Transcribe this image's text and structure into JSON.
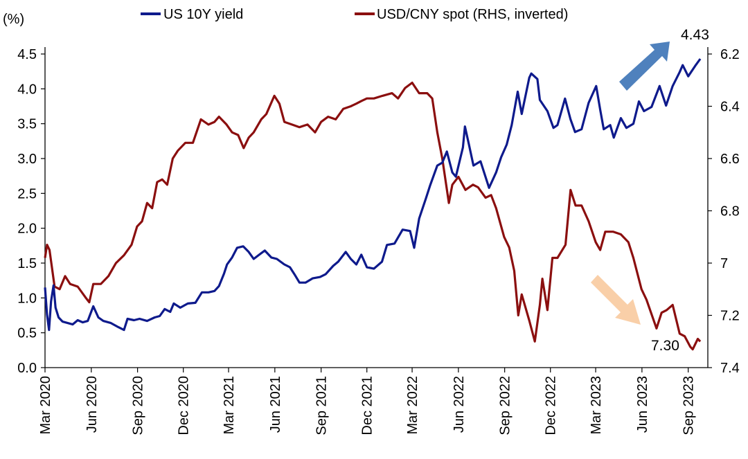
{
  "chart_data": {
    "type": "line",
    "y_unit_label": "(%)",
    "x_tick_labels": [
      "Mar 2020",
      "Jun 2020",
      "Sep 2020",
      "Dec 2020",
      "Mar 2021",
      "Jun 2021",
      "Sep 2021",
      "Dec 2021",
      "Mar 2022",
      "Jun 2022",
      "Sep 2022",
      "Dec 2022",
      "Mar 2023",
      "Jun 2023",
      "Sep 2023"
    ],
    "x_range": [
      "2020-03-01",
      "2023-10-10"
    ],
    "y_left": {
      "ylim": [
        0,
        4.5
      ],
      "ticks": [
        "0.0",
        "0.5",
        "1.0",
        "1.5",
        "2.0",
        "2.5",
        "3.0",
        "3.5",
        "4.0",
        "4.5"
      ]
    },
    "y_right": {
      "ylim": [
        6.2,
        7.4
      ],
      "inverted": true,
      "ticks": [
        "6.2",
        "6.4",
        "6.6",
        "6.8",
        "7",
        "7.2",
        "7.4"
      ]
    },
    "legend_position": "top",
    "series": [
      {
        "name": "US 10Y yield",
        "axis": "left",
        "color": "#0e1a8c",
        "points": [
          [
            "2020-03-01",
            1.15
          ],
          [
            "2020-03-05",
            0.76
          ],
          [
            "2020-03-09",
            0.54
          ],
          [
            "2020-03-13",
            0.95
          ],
          [
            "2020-03-18",
            1.18
          ],
          [
            "2020-03-22",
            0.86
          ],
          [
            "2020-03-28",
            0.72
          ],
          [
            "2020-04-05",
            0.66
          ],
          [
            "2020-04-15",
            0.64
          ],
          [
            "2020-04-25",
            0.62
          ],
          [
            "2020-05-05",
            0.68
          ],
          [
            "2020-05-15",
            0.65
          ],
          [
            "2020-05-25",
            0.67
          ],
          [
            "2020-06-05",
            0.88
          ],
          [
            "2020-06-15",
            0.72
          ],
          [
            "2020-06-25",
            0.67
          ],
          [
            "2020-07-10",
            0.64
          ],
          [
            "2020-07-25",
            0.58
          ],
          [
            "2020-08-05",
            0.54
          ],
          [
            "2020-08-12",
            0.7
          ],
          [
            "2020-08-25",
            0.68
          ],
          [
            "2020-09-05",
            0.7
          ],
          [
            "2020-09-20",
            0.67
          ],
          [
            "2020-10-05",
            0.72
          ],
          [
            "2020-10-15",
            0.74
          ],
          [
            "2020-10-25",
            0.84
          ],
          [
            "2020-11-05",
            0.8
          ],
          [
            "2020-11-12",
            0.92
          ],
          [
            "2020-11-25",
            0.86
          ],
          [
            "2020-12-10",
            0.92
          ],
          [
            "2020-12-25",
            0.93
          ],
          [
            "2021-01-07",
            1.08
          ],
          [
            "2021-01-20",
            1.08
          ],
          [
            "2021-02-01",
            1.1
          ],
          [
            "2021-02-10",
            1.17
          ],
          [
            "2021-02-20",
            1.35
          ],
          [
            "2021-02-26",
            1.48
          ],
          [
            "2021-03-08",
            1.58
          ],
          [
            "2021-03-18",
            1.72
          ],
          [
            "2021-03-30",
            1.74
          ],
          [
            "2021-04-10",
            1.66
          ],
          [
            "2021-04-20",
            1.56
          ],
          [
            "2021-05-01",
            1.62
          ],
          [
            "2021-05-12",
            1.68
          ],
          [
            "2021-05-25",
            1.58
          ],
          [
            "2021-06-05",
            1.56
          ],
          [
            "2021-06-20",
            1.48
          ],
          [
            "2021-07-01",
            1.44
          ],
          [
            "2021-07-10",
            1.34
          ],
          [
            "2021-07-20",
            1.22
          ],
          [
            "2021-08-01",
            1.22
          ],
          [
            "2021-08-15",
            1.28
          ],
          [
            "2021-08-30",
            1.3
          ],
          [
            "2021-09-10",
            1.34
          ],
          [
            "2021-09-25",
            1.46
          ],
          [
            "2021-10-05",
            1.52
          ],
          [
            "2021-10-20",
            1.66
          ],
          [
            "2021-10-30",
            1.56
          ],
          [
            "2021-11-10",
            1.48
          ],
          [
            "2021-11-20",
            1.62
          ],
          [
            "2021-12-01",
            1.44
          ],
          [
            "2021-12-15",
            1.42
          ],
          [
            "2021-12-31",
            1.52
          ],
          [
            "2022-01-10",
            1.76
          ],
          [
            "2022-01-25",
            1.78
          ],
          [
            "2022-02-10",
            1.98
          ],
          [
            "2022-02-25",
            1.96
          ],
          [
            "2022-03-05",
            1.72
          ],
          [
            "2022-03-15",
            2.14
          ],
          [
            "2022-03-28",
            2.42
          ],
          [
            "2022-04-06",
            2.62
          ],
          [
            "2022-04-20",
            2.9
          ],
          [
            "2022-04-30",
            2.94
          ],
          [
            "2022-05-09",
            3.1
          ],
          [
            "2022-05-20",
            2.8
          ],
          [
            "2022-05-27",
            2.74
          ],
          [
            "2022-06-10",
            3.16
          ],
          [
            "2022-06-14",
            3.46
          ],
          [
            "2022-06-22",
            3.2
          ],
          [
            "2022-07-01",
            2.9
          ],
          [
            "2022-07-15",
            2.96
          ],
          [
            "2022-08-01",
            2.58
          ],
          [
            "2022-08-15",
            2.8
          ],
          [
            "2022-08-25",
            3.02
          ],
          [
            "2022-09-05",
            3.2
          ],
          [
            "2022-09-15",
            3.48
          ],
          [
            "2022-09-27",
            3.96
          ],
          [
            "2022-10-05",
            3.64
          ],
          [
            "2022-10-20",
            4.16
          ],
          [
            "2022-10-24",
            4.22
          ],
          [
            "2022-11-05",
            4.14
          ],
          [
            "2022-11-10",
            3.84
          ],
          [
            "2022-11-25",
            3.68
          ],
          [
            "2022-12-07",
            3.44
          ],
          [
            "2022-12-15",
            3.48
          ],
          [
            "2022-12-30",
            3.86
          ],
          [
            "2023-01-10",
            3.56
          ],
          [
            "2023-01-19",
            3.38
          ],
          [
            "2023-02-01",
            3.42
          ],
          [
            "2023-02-15",
            3.8
          ],
          [
            "2023-03-02",
            4.04
          ],
          [
            "2023-03-10",
            3.7
          ],
          [
            "2023-03-17",
            3.42
          ],
          [
            "2023-03-30",
            3.48
          ],
          [
            "2023-04-06",
            3.3
          ],
          [
            "2023-04-20",
            3.58
          ],
          [
            "2023-05-01",
            3.44
          ],
          [
            "2023-05-15",
            3.5
          ],
          [
            "2023-05-26",
            3.82
          ],
          [
            "2023-06-05",
            3.68
          ],
          [
            "2023-06-20",
            3.74
          ],
          [
            "2023-07-06",
            4.04
          ],
          [
            "2023-07-19",
            3.76
          ],
          [
            "2023-08-01",
            4.04
          ],
          [
            "2023-08-15",
            4.24
          ],
          [
            "2023-08-21",
            4.34
          ],
          [
            "2023-09-01",
            4.18
          ],
          [
            "2023-09-15",
            4.33
          ],
          [
            "2023-09-25",
            4.43
          ]
        ]
      },
      {
        "name": "USD/CNY spot (RHS, inverted)",
        "axis": "right",
        "color": "#8b0f0f",
        "points": [
          [
            "2020-03-01",
            6.98
          ],
          [
            "2020-03-05",
            6.93
          ],
          [
            "2020-03-10",
            6.95
          ],
          [
            "2020-03-20",
            7.09
          ],
          [
            "2020-03-30",
            7.1
          ],
          [
            "2020-04-10",
            7.05
          ],
          [
            "2020-04-20",
            7.08
          ],
          [
            "2020-05-05",
            7.09
          ],
          [
            "2020-05-20",
            7.13
          ],
          [
            "2020-05-28",
            7.15
          ],
          [
            "2020-06-05",
            7.08
          ],
          [
            "2020-06-20",
            7.08
          ],
          [
            "2020-07-05",
            7.05
          ],
          [
            "2020-07-20",
            7.0
          ],
          [
            "2020-08-05",
            6.97
          ],
          [
            "2020-08-20",
            6.93
          ],
          [
            "2020-08-31",
            6.86
          ],
          [
            "2020-09-10",
            6.84
          ],
          [
            "2020-09-20",
            6.77
          ],
          [
            "2020-09-30",
            6.79
          ],
          [
            "2020-10-10",
            6.69
          ],
          [
            "2020-10-20",
            6.68
          ],
          [
            "2020-10-30",
            6.7
          ],
          [
            "2020-11-10",
            6.6
          ],
          [
            "2020-11-20",
            6.57
          ],
          [
            "2020-12-05",
            6.54
          ],
          [
            "2020-12-20",
            6.54
          ],
          [
            "2021-01-05",
            6.45
          ],
          [
            "2021-01-20",
            6.47
          ],
          [
            "2021-02-01",
            6.46
          ],
          [
            "2021-02-10",
            6.44
          ],
          [
            "2021-02-25",
            6.47
          ],
          [
            "2021-03-08",
            6.5
          ],
          [
            "2021-03-20",
            6.51
          ],
          [
            "2021-03-31",
            6.56
          ],
          [
            "2021-04-10",
            6.52
          ],
          [
            "2021-04-20",
            6.5
          ],
          [
            "2021-05-05",
            6.45
          ],
          [
            "2021-05-15",
            6.43
          ],
          [
            "2021-05-31",
            6.36
          ],
          [
            "2021-06-10",
            6.39
          ],
          [
            "2021-06-20",
            6.46
          ],
          [
            "2021-07-05",
            6.47
          ],
          [
            "2021-07-20",
            6.48
          ],
          [
            "2021-08-05",
            6.47
          ],
          [
            "2021-08-20",
            6.5
          ],
          [
            "2021-09-01",
            6.46
          ],
          [
            "2021-09-15",
            6.44
          ],
          [
            "2021-09-30",
            6.45
          ],
          [
            "2021-10-15",
            6.41
          ],
          [
            "2021-10-30",
            6.4
          ],
          [
            "2021-11-10",
            6.39
          ],
          [
            "2021-11-20",
            6.38
          ],
          [
            "2021-12-01",
            6.37
          ],
          [
            "2021-12-15",
            6.37
          ],
          [
            "2022-01-01",
            6.36
          ],
          [
            "2022-01-20",
            6.35
          ],
          [
            "2022-02-01",
            6.37
          ],
          [
            "2022-02-15",
            6.33
          ],
          [
            "2022-03-01",
            6.31
          ],
          [
            "2022-03-15",
            6.35
          ],
          [
            "2022-03-31",
            6.35
          ],
          [
            "2022-04-10",
            6.37
          ],
          [
            "2022-04-20",
            6.5
          ],
          [
            "2022-04-30",
            6.6
          ],
          [
            "2022-05-13",
            6.77
          ],
          [
            "2022-05-20",
            6.7
          ],
          [
            "2022-06-01",
            6.67
          ],
          [
            "2022-06-15",
            6.72
          ],
          [
            "2022-06-30",
            6.7
          ],
          [
            "2022-07-10",
            6.71
          ],
          [
            "2022-07-25",
            6.75
          ],
          [
            "2022-08-05",
            6.74
          ],
          [
            "2022-08-15",
            6.79
          ],
          [
            "2022-08-31",
            6.9
          ],
          [
            "2022-09-10",
            6.94
          ],
          [
            "2022-09-20",
            7.03
          ],
          [
            "2022-09-28",
            7.2
          ],
          [
            "2022-10-05",
            7.12
          ],
          [
            "2022-10-20",
            7.22
          ],
          [
            "2022-10-31",
            7.3
          ],
          [
            "2022-11-10",
            7.16
          ],
          [
            "2022-11-15",
            7.06
          ],
          [
            "2022-11-25",
            7.18
          ],
          [
            "2022-12-05",
            6.98
          ],
          [
            "2022-12-15",
            6.98
          ],
          [
            "2022-12-31",
            6.93
          ],
          [
            "2023-01-10",
            6.72
          ],
          [
            "2023-01-20",
            6.78
          ],
          [
            "2023-02-01",
            6.78
          ],
          [
            "2023-02-15",
            6.84
          ],
          [
            "2023-03-01",
            6.92
          ],
          [
            "2023-03-10",
            6.95
          ],
          [
            "2023-03-20",
            6.88
          ],
          [
            "2023-04-05",
            6.88
          ],
          [
            "2023-04-20",
            6.89
          ],
          [
            "2023-05-05",
            6.92
          ],
          [
            "2023-05-15",
            6.98
          ],
          [
            "2023-05-31",
            7.1
          ],
          [
            "2023-06-10",
            7.14
          ],
          [
            "2023-06-30",
            7.25
          ],
          [
            "2023-07-10",
            7.19
          ],
          [
            "2023-07-20",
            7.18
          ],
          [
            "2023-08-01",
            7.16
          ],
          [
            "2023-08-15",
            7.27
          ],
          [
            "2023-08-25",
            7.28
          ],
          [
            "2023-09-05",
            7.32
          ],
          [
            "2023-09-10",
            7.33
          ],
          [
            "2023-09-20",
            7.29
          ],
          [
            "2023-09-25",
            7.3
          ]
        ]
      }
    ],
    "annotations": [
      {
        "label": "4.43",
        "series": "US 10Y yield",
        "arrow": "up",
        "arrow_color": "#4f81bd"
      },
      {
        "label": "7.30",
        "series": "USD/CNY spot (RHS, inverted)",
        "arrow": "down",
        "arrow_color": "#f9cfa8"
      }
    ]
  }
}
